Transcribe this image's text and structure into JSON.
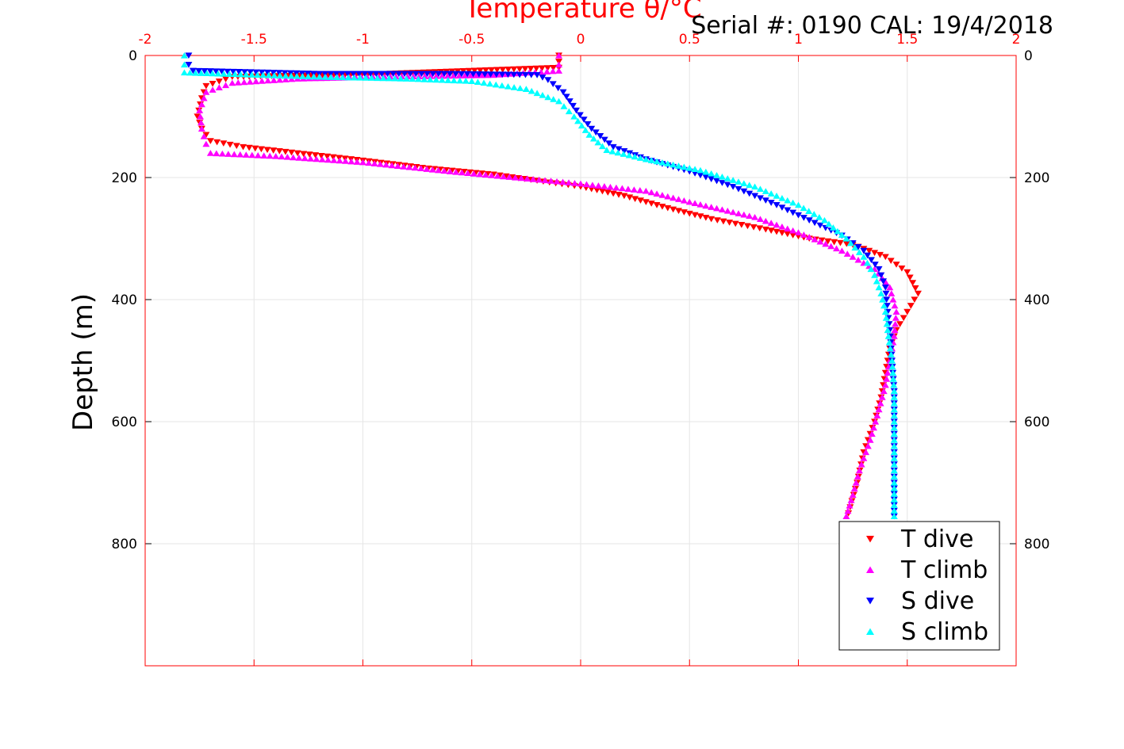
{
  "chart_data": {
    "type": "scatter",
    "title": "Temperature θ/°C",
    "subtitle": "Serial #: 0190  CAL: 19/4/2018",
    "xlabel_top": "Temperature θ/°C",
    "ylabel": "Depth (m)",
    "xlim": [
      -2,
      2
    ],
    "ylim": [
      0,
      1000
    ],
    "y_reversed": true,
    "x_ticks": [
      "-2",
      "-1.5",
      "-1",
      "-0.5",
      "0",
      "0.5",
      "1",
      "1.5",
      "2"
    ],
    "y_ticks": [
      "0",
      "200",
      "400",
      "600",
      "800"
    ],
    "grid": true,
    "legend_position": "bottom-right",
    "colors": {
      "T dive": "#ff0000",
      "T climb": "#ff00ff",
      "S dive": "#0000ff",
      "S climb": "#00ffff",
      "axis_top": "#ff0000"
    },
    "series": [
      {
        "name": "T dive",
        "marker": "triangle-down",
        "points": [
          [
            -0.1,
            0
          ],
          [
            -0.1,
            10
          ],
          [
            -0.1,
            20
          ],
          [
            -0.9,
            30
          ],
          [
            -1.6,
            35
          ],
          [
            -1.72,
            50
          ],
          [
            -1.74,
            70
          ],
          [
            -1.76,
            100
          ],
          [
            -1.74,
            120
          ],
          [
            -1.7,
            140
          ],
          [
            -1.55,
            150
          ],
          [
            -1.3,
            160
          ],
          [
            -1.0,
            172
          ],
          [
            -0.7,
            185
          ],
          [
            -0.4,
            195
          ],
          [
            -0.2,
            205
          ],
          [
            0.0,
            215
          ],
          [
            0.2,
            230
          ],
          [
            0.4,
            250
          ],
          [
            0.6,
            268
          ],
          [
            0.85,
            285
          ],
          [
            1.05,
            300
          ],
          [
            1.25,
            310
          ],
          [
            1.4,
            330
          ],
          [
            1.5,
            355
          ],
          [
            1.55,
            390
          ],
          [
            1.5,
            420
          ],
          [
            1.45,
            450
          ],
          [
            1.42,
            480
          ],
          [
            1.4,
            520
          ],
          [
            1.38,
            560
          ],
          [
            1.35,
            600
          ],
          [
            1.3,
            650
          ],
          [
            1.27,
            700
          ],
          [
            1.23,
            750
          ]
        ]
      },
      {
        "name": "T climb",
        "marker": "triangle-up",
        "points": [
          [
            -0.1,
            0
          ],
          [
            -0.1,
            15
          ],
          [
            -0.1,
            25
          ],
          [
            -0.4,
            32
          ],
          [
            -0.9,
            35
          ],
          [
            -1.3,
            38
          ],
          [
            -1.6,
            45
          ],
          [
            -1.72,
            60
          ],
          [
            -1.75,
            90
          ],
          [
            -1.74,
            120
          ],
          [
            -1.72,
            145
          ],
          [
            -1.7,
            160
          ],
          [
            -1.4,
            165
          ],
          [
            -1.0,
            175
          ],
          [
            -0.6,
            190
          ],
          [
            -0.3,
            200
          ],
          [
            0.0,
            210
          ],
          [
            0.3,
            222
          ],
          [
            0.5,
            240
          ],
          [
            0.8,
            265
          ],
          [
            1.0,
            290
          ],
          [
            1.2,
            320
          ],
          [
            1.35,
            350
          ],
          [
            1.42,
            380
          ],
          [
            1.45,
            420
          ],
          [
            1.44,
            460
          ],
          [
            1.42,
            500
          ],
          [
            1.4,
            540
          ],
          [
            1.37,
            580
          ],
          [
            1.33,
            630
          ],
          [
            1.28,
            680
          ],
          [
            1.25,
            720
          ],
          [
            1.22,
            755
          ]
        ]
      },
      {
        "name": "S dive",
        "marker": "triangle-down",
        "points": [
          [
            -1.8,
            0
          ],
          [
            -1.8,
            15
          ],
          [
            -1.78,
            25
          ],
          [
            -1.2,
            30
          ],
          [
            -0.6,
            30
          ],
          [
            -0.2,
            32
          ],
          [
            -0.15,
            40
          ],
          [
            -0.08,
            60
          ],
          [
            -0.02,
            90
          ],
          [
            0.05,
            120
          ],
          [
            0.15,
            150
          ],
          [
            0.3,
            170
          ],
          [
            0.5,
            190
          ],
          [
            0.7,
            215
          ],
          [
            0.9,
            245
          ],
          [
            1.05,
            270
          ],
          [
            1.2,
            295
          ],
          [
            1.3,
            320
          ],
          [
            1.37,
            350
          ],
          [
            1.4,
            380
          ],
          [
            1.41,
            420
          ],
          [
            1.42,
            450
          ],
          [
            1.43,
            500
          ],
          [
            1.44,
            550
          ],
          [
            1.44,
            600
          ],
          [
            1.44,
            650
          ],
          [
            1.44,
            700
          ],
          [
            1.44,
            755
          ]
        ]
      },
      {
        "name": "S climb",
        "marker": "triangle-up",
        "points": [
          [
            -1.82,
            0
          ],
          [
            -1.82,
            15
          ],
          [
            -1.82,
            28
          ],
          [
            -1.2,
            35
          ],
          [
            -0.8,
            38
          ],
          [
            -0.5,
            42
          ],
          [
            -0.25,
            55
          ],
          [
            -0.1,
            75
          ],
          [
            -0.03,
            100
          ],
          [
            0.04,
            130
          ],
          [
            0.12,
            155
          ],
          [
            0.3,
            170
          ],
          [
            0.55,
            188
          ],
          [
            0.8,
            215
          ],
          [
            1.0,
            245
          ],
          [
            1.12,
            270
          ],
          [
            1.22,
            300
          ],
          [
            1.3,
            330
          ],
          [
            1.35,
            360
          ],
          [
            1.38,
            390
          ],
          [
            1.4,
            420
          ],
          [
            1.41,
            450
          ],
          [
            1.43,
            500
          ],
          [
            1.44,
            550
          ],
          [
            1.44,
            600
          ],
          [
            1.44,
            650
          ],
          [
            1.44,
            700
          ],
          [
            1.44,
            755
          ]
        ]
      }
    ]
  }
}
